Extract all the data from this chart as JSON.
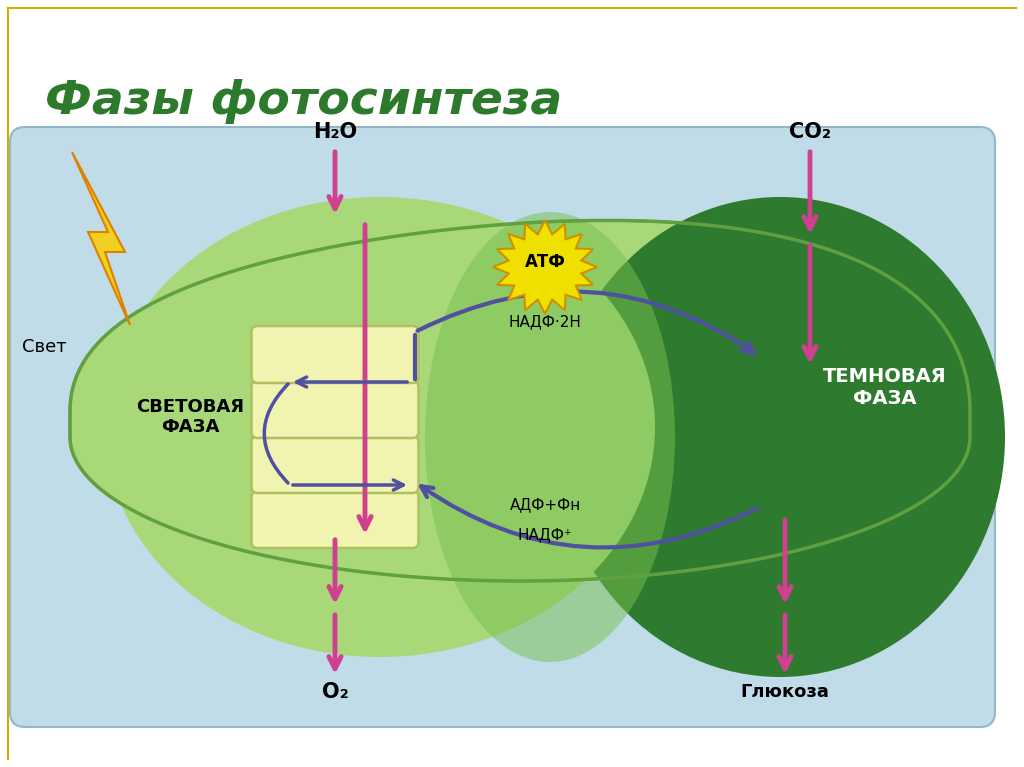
{
  "title": "Фазы фотосинтеза",
  "title_color": "#2d7a2d",
  "title_fontsize": 34,
  "bg_color": "#ffffff",
  "slide_border_color": "#c8b400",
  "diagram_bg": "#c0dce8",
  "chloroplast_light_color": "#a8d878",
  "chloroplast_mid_color": "#78c050",
  "chloroplast_dark_color": "#2e7a2e",
  "thylakoid_color": "#f0f4b0",
  "thylakoid_border": "#b0c060",
  "arrow_pink": "#d04090",
  "arrow_purple": "#5050a0",
  "text_svetovaya": "СВЕТОВАЯ\nФАЗА",
  "text_temnaya": "ТЕМНОВАЯ\nФАЗА",
  "text_svet": "Свет",
  "text_h2o": "H₂O",
  "text_co2": "CO₂",
  "text_o2": "O₂",
  "text_glyukoza": "Глюкоза",
  "text_atf": "АТФ",
  "text_nadf2h": "НАДФ·2Н",
  "text_adf": "АДФ+Фн",
  "text_nadf": "НАДФ⁺",
  "atf_burst_color": "#f0e000",
  "atf_burst_border": "#d09000",
  "lightning_fill": "#f0d020",
  "lightning_edge": "#e08000",
  "ray_color": "#d08020"
}
